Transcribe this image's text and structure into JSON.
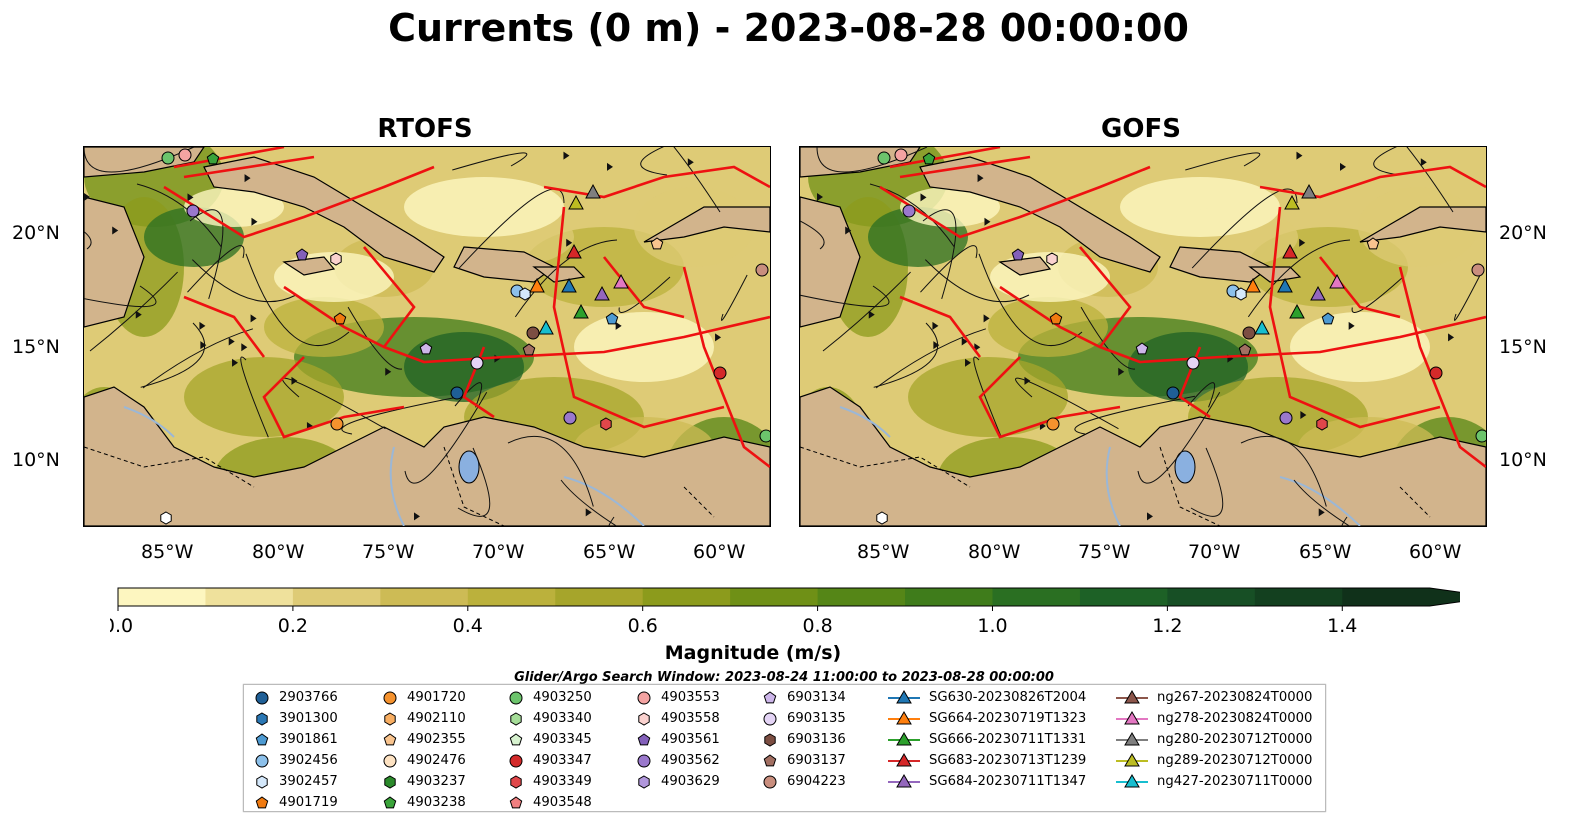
{
  "title": "Currents (0 m) - 2023-08-28 00:00:00",
  "panels": [
    {
      "title": "RTOFS"
    },
    {
      "title": "GOFS"
    }
  ],
  "axes": {
    "lat_labels": [
      "20°N",
      "15°N",
      "10°N"
    ],
    "lon_labels": [
      "85°W",
      "80°W",
      "75°W",
      "70°W",
      "65°W",
      "60°W"
    ]
  },
  "colorbar": {
    "label": "Magnitude (m/s)",
    "ticks": [
      "0.0",
      "0.2",
      "0.4",
      "0.6",
      "0.8",
      "1.0",
      "1.2",
      "1.4"
    ],
    "min": 0.0,
    "max": 1.5,
    "colors": [
      "#fdf6c0",
      "#efe19c",
      "#decb76",
      "#cdbb55",
      "#bbb13c",
      "#a6a52b",
      "#8c9b1c",
      "#6f9016",
      "#558617",
      "#3f7c1b",
      "#2a6f22",
      "#1d6126",
      "#174f25",
      "#13401f",
      "#10311a"
    ]
  },
  "search_window": "Glider/Argo Search Window: 2023-08-24 11:00:00 to 2023-08-28 00:00:00",
  "legend": {
    "columns": [
      [
        {
          "label": "2903766",
          "marker": "circle",
          "color": "#1f5f96"
        },
        {
          "label": "3901300",
          "marker": "hexagon",
          "color": "#2a77b4"
        },
        {
          "label": "3901861",
          "marker": "pentagon",
          "color": "#4d9ad2"
        },
        {
          "label": "3902456",
          "marker": "circle",
          "color": "#8cc0ea"
        },
        {
          "label": "3902457",
          "marker": "hexagon",
          "color": "#d4e8fb"
        },
        {
          "label": "4901719",
          "marker": "pentagon",
          "color": "#f07a10"
        }
      ],
      [
        {
          "label": "4901720",
          "marker": "circle",
          "color": "#f5922e"
        },
        {
          "label": "4902110",
          "marker": "hexagon",
          "color": "#f8ae62"
        },
        {
          "label": "4902355",
          "marker": "pentagon",
          "color": "#f9c48e"
        },
        {
          "label": "4902476",
          "marker": "circle",
          "color": "#fde2c2"
        },
        {
          "label": "4903237",
          "marker": "hexagon",
          "color": "#2b8a2b"
        },
        {
          "label": "4903238",
          "marker": "pentagon",
          "color": "#3aa33a"
        }
      ],
      [
        {
          "label": "4903250",
          "marker": "circle",
          "color": "#6cc46c"
        },
        {
          "label": "4903340",
          "marker": "hexagon",
          "color": "#a5dd98"
        },
        {
          "label": "4903345",
          "marker": "pentagon",
          "color": "#d7f2cf"
        },
        {
          "label": "4903347",
          "marker": "circle",
          "color": "#d42a2a"
        },
        {
          "label": "4903349",
          "marker": "hexagon",
          "color": "#e0474a"
        },
        {
          "label": "4903548",
          "marker": "pentagon",
          "color": "#f07f80"
        }
      ],
      [
        {
          "label": "4903553",
          "marker": "circle",
          "color": "#f4a3a2"
        },
        {
          "label": "4903558",
          "marker": "hexagon",
          "color": "#fad2cf"
        },
        {
          "label": "4903561",
          "marker": "pentagon",
          "color": "#8360ba"
        },
        {
          "label": "4903562",
          "marker": "circle",
          "color": "#9a78cc"
        },
        {
          "label": "4903629",
          "marker": "hexagon",
          "color": "#b197dc"
        }
      ],
      [
        {
          "label": "6903134",
          "marker": "pentagon",
          "color": "#cdb6ea"
        },
        {
          "label": "6903135",
          "marker": "circle",
          "color": "#e4d4f5"
        },
        {
          "label": "6903136",
          "marker": "hexagon",
          "color": "#7c4e42"
        },
        {
          "label": "6903137",
          "marker": "pentagon",
          "color": "#a26f62"
        },
        {
          "label": "6904223",
          "marker": "circle",
          "color": "#c98e7e"
        }
      ],
      [
        {
          "label": "SG630-20230826T2004",
          "marker": "triangle-line",
          "color": "#1f77b4"
        },
        {
          "label": "SG664-20230719T1323",
          "marker": "triangle-line",
          "color": "#ff7f0e"
        },
        {
          "label": "SG666-20230711T1331",
          "marker": "triangle-line",
          "color": "#2ca02c"
        },
        {
          "label": "SG683-20230713T1239",
          "marker": "triangle-line",
          "color": "#d62728"
        },
        {
          "label": "SG684-20230711T1347",
          "marker": "triangle-line",
          "color": "#9467bd"
        }
      ],
      [
        {
          "label": "ng267-20230824T0000",
          "marker": "triangle-line",
          "color": "#8c564b"
        },
        {
          "label": "ng278-20230824T0000",
          "marker": "triangle-line",
          "color": "#e377c2"
        },
        {
          "label": "ng280-20230712T0000",
          "marker": "triangle-line",
          "color": "#7f7f7f"
        },
        {
          "label": "ng289-20230712T0000",
          "marker": "triangle-line",
          "color": "#bcbd22"
        },
        {
          "label": "ng427-20230711T0000",
          "marker": "triangle-line",
          "color": "#17becf"
        }
      ]
    ]
  },
  "map_colors": {
    "land": "#d2b48c",
    "water_bodies": "#8ab0e0",
    "rivers": "#9bb7d6",
    "red_tracks": "#ee1111",
    "streamlines": "#111111"
  }
}
